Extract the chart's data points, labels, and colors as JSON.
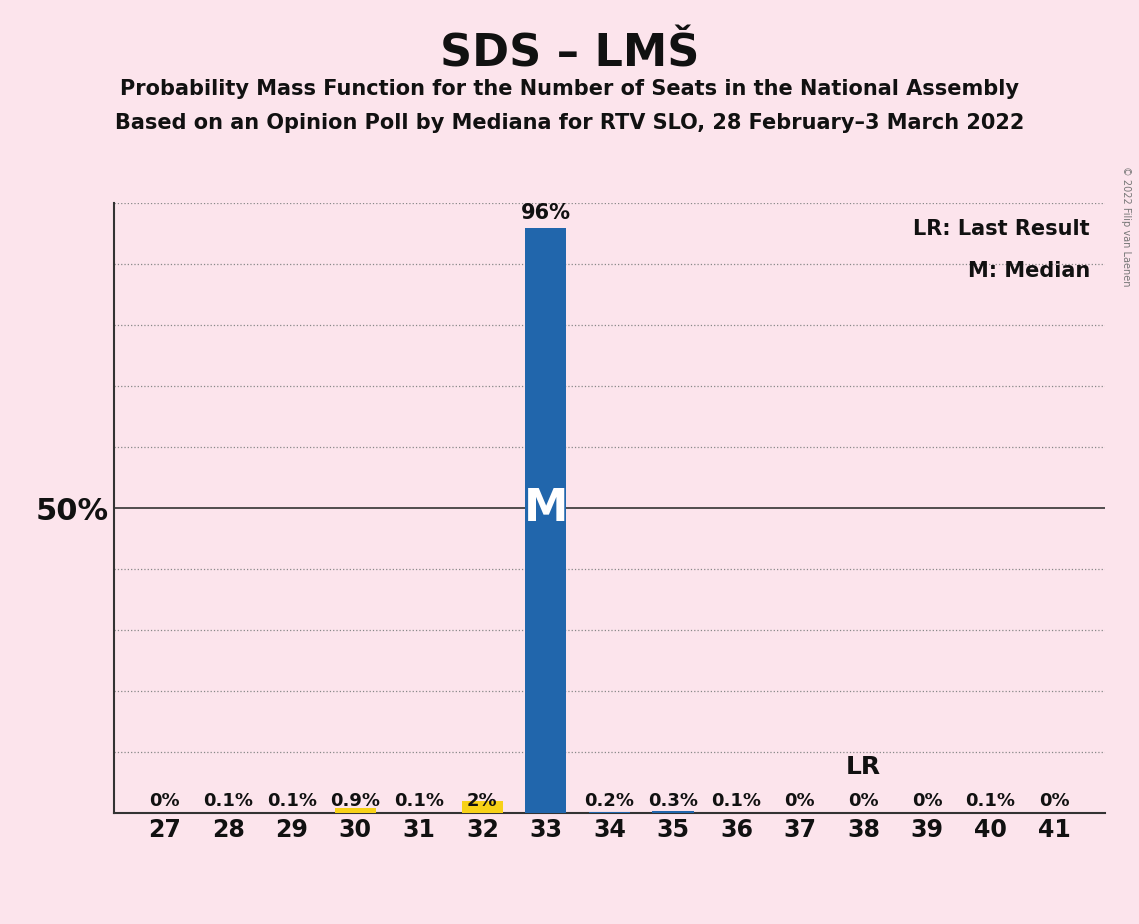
{
  "title": "SDS – LMŠ",
  "subtitle1": "Probability Mass Function for the Number of Seats in the National Assembly",
  "subtitle2": "Based on an Opinion Poll by Mediana for RTV SLO, 28 February–3 March 2022",
  "copyright": "© 2022 Filip van Laenen",
  "seats": [
    27,
    28,
    29,
    30,
    31,
    32,
    33,
    34,
    35,
    36,
    37,
    38,
    39,
    40,
    41
  ],
  "probabilities": [
    0.0,
    0.1,
    0.1,
    0.9,
    0.1,
    2.0,
    96.0,
    0.2,
    0.3,
    0.1,
    0.0,
    0.0,
    0.0,
    0.1,
    0.0
  ],
  "prob_labels": [
    "0%",
    "0.1%",
    "0.1%",
    "0.9%",
    "0.1%",
    "2%",
    "96%",
    "0.2%",
    "0.3%",
    "0.1%",
    "0%",
    "0%",
    "0%",
    "0.1%",
    "0%"
  ],
  "bar_colors": [
    "#2166ac",
    "#2166ac",
    "#2166ac",
    "#f7d117",
    "#2166ac",
    "#f7d117",
    "#2166ac",
    "#2166ac",
    "#2166ac",
    "#2166ac",
    "#2166ac",
    "#2166ac",
    "#2166ac",
    "#2166ac",
    "#2166ac"
  ],
  "median_seat": 33,
  "lr_seat": 38,
  "ylim": [
    0,
    100
  ],
  "yticks": [
    0,
    10,
    20,
    30,
    40,
    50,
    60,
    70,
    80,
    90,
    100
  ],
  "ylabel_50": "50%",
  "background_color": "#fce4ec",
  "bar_color_main": "#2166ac",
  "bar_color_highlight": "#f7d117",
  "lr_label": "LR",
  "median_label": "M",
  "legend_lr": "LR: Last Result",
  "legend_m": "M: Median",
  "figsize": [
    11.39,
    9.24
  ],
  "dpi": 100
}
